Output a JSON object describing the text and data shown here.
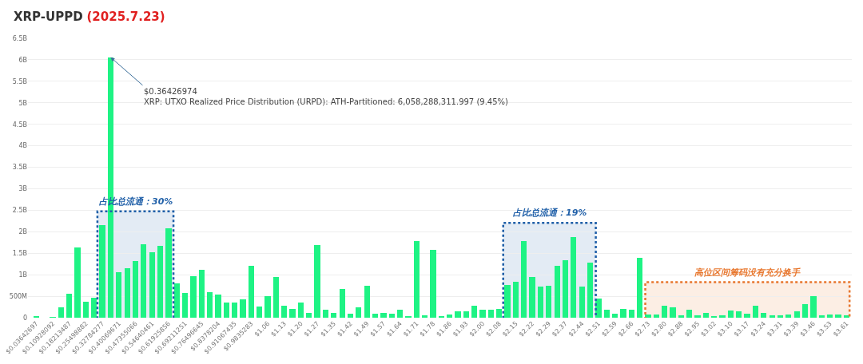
{
  "chart_data": {
    "type": "bar",
    "title": "XRP-UPPD",
    "subtitle": "(2025.7.23)",
    "x": [
      0.03642697,
      0.07285,
      0.10928092,
      0.14571,
      0.18213487,
      0.21856,
      0.25498882,
      0.29142,
      0.32784277,
      0.36426974,
      0.40069671,
      0.43712,
      0.47355066,
      0.50998,
      0.54640461,
      0.58283,
      0.61925856,
      0.65569,
      0.69211251,
      0.72854,
      0.76496645,
      0.80139,
      0.8378204,
      0.87425,
      0.91067435,
      0.9471,
      0.9835283,
      1.01996,
      1.05638,
      1.09281,
      1.12924,
      1.16566,
      1.20209,
      1.23852,
      1.27494,
      1.31137,
      1.3478,
      1.38422,
      1.42065,
      1.45708,
      1.49351,
      1.52993,
      1.56636,
      1.60279,
      1.63921,
      1.67564,
      1.71207,
      1.74849,
      1.78492,
      1.82135,
      1.85778,
      1.8942,
      1.93063,
      1.96706,
      2.00348,
      2.03991,
      2.07634,
      2.11276,
      2.14919,
      2.18562,
      2.22205,
      2.25847,
      2.2949,
      2.33133,
      2.36775,
      2.40418,
      2.44061,
      2.47703,
      2.51346,
      2.54989,
      2.58632,
      2.62274,
      2.65917,
      2.6956,
      2.73202,
      2.76845,
      2.80488,
      2.8413,
      2.87773,
      2.91416,
      2.95059,
      2.98701,
      3.02344,
      3.05987,
      3.09629,
      3.13272,
      3.16915,
      3.20557,
      3.242,
      3.27843,
      3.31486,
      3.35128,
      3.38771,
      3.42414,
      3.46056,
      3.49699,
      3.53342,
      3.56984,
      3.60627
    ],
    "values": [
      30000000,
      0,
      10000000,
      240000000,
      560000000,
      1630000000,
      380000000,
      460000000,
      2150000000,
      6058288312,
      1050000000,
      1160000000,
      1320000000,
      1710000000,
      1530000000,
      1680000000,
      2080000000,
      790000000,
      580000000,
      960000000,
      1110000000,
      590000000,
      540000000,
      350000000,
      350000000,
      430000000,
      1200000000,
      260000000,
      510000000,
      940000000,
      280000000,
      200000000,
      350000000,
      110000000,
      1690000000,
      180000000,
      120000000,
      670000000,
      100000000,
      240000000,
      750000000,
      100000000,
      120000000,
      100000000,
      190000000,
      40000000,
      1780000000,
      50000000,
      1580000000,
      40000000,
      80000000,
      150000000,
      150000000,
      270000000,
      180000000,
      180000000,
      210000000,
      770000000,
      840000000,
      1780000000,
      950000000,
      720000000,
      750000000,
      1210000000,
      1330000000,
      1880000000,
      730000000,
      1280000000,
      450000000,
      190000000,
      100000000,
      200000000,
      180000000,
      1400000000,
      80000000,
      80000000,
      270000000,
      250000000,
      60000000,
      190000000,
      60000000,
      120000000,
      30000000,
      50000000,
      160000000,
      150000000,
      100000000,
      270000000,
      120000000,
      50000000,
      50000000,
      70000000,
      150000000,
      310000000,
      500000000,
      50000000,
      70000000,
      70000000,
      60000000
    ],
    "color": "#1ef384",
    "xlim": [
      0.0,
      3.63
    ],
    "xticks": [
      {
        "value": 0.03642697,
        "label": "$0.03642697"
      },
      {
        "value": 0.10928092,
        "label": "$0.10928092"
      },
      {
        "value": 0.18213487,
        "label": "$0.18213487"
      },
      {
        "value": 0.25498882,
        "label": "$0.25498882"
      },
      {
        "value": 0.32784277,
        "label": "$0.32784277"
      },
      {
        "value": 0.40069671,
        "label": "$0.40069671"
      },
      {
        "value": 0.47355066,
        "label": "$0.47355066"
      },
      {
        "value": 0.54640461,
        "label": "$0.54640461"
      },
      {
        "value": 0.61925856,
        "label": "$0.61925856"
      },
      {
        "value": 0.69211251,
        "label": "$0.69211251"
      },
      {
        "value": 0.76496645,
        "label": "$0.76496645"
      },
      {
        "value": 0.8378204,
        "label": "$0.8378204"
      },
      {
        "value": 0.91067435,
        "label": "$0.91067435"
      },
      {
        "value": 0.9835283,
        "label": "$0.9835283"
      },
      {
        "value": 1.05638,
        "label": "$1.06"
      },
      {
        "value": 1.12924,
        "label": "$1.13"
      },
      {
        "value": 1.20209,
        "label": "$1.20"
      },
      {
        "value": 1.27494,
        "label": "$1.27"
      },
      {
        "value": 1.3478,
        "label": "$1.35"
      },
      {
        "value": 1.42065,
        "label": "$1.42"
      },
      {
        "value": 1.49351,
        "label": "$1.49"
      },
      {
        "value": 1.56636,
        "label": "$1.57"
      },
      {
        "value": 1.63921,
        "label": "$1.64"
      },
      {
        "value": 1.71207,
        "label": "$1.71"
      },
      {
        "value": 1.78492,
        "label": "$1.78"
      },
      {
        "value": 1.85778,
        "label": "$1.86"
      },
      {
        "value": 1.93063,
        "label": "$1.93"
      },
      {
        "value": 2.00348,
        "label": "$2.00"
      },
      {
        "value": 2.07634,
        "label": "$2.08"
      },
      {
        "value": 2.14919,
        "label": "$2.15"
      },
      {
        "value": 2.22205,
        "label": "$2.22"
      },
      {
        "value": 2.2949,
        "label": "$2.29"
      },
      {
        "value": 2.36775,
        "label": "$2.37"
      },
      {
        "value": 2.44061,
        "label": "$2.44"
      },
      {
        "value": 2.51346,
        "label": "$2.51"
      },
      {
        "value": 2.58632,
        "label": "$2.59"
      },
      {
        "value": 2.65917,
        "label": "$2.66"
      },
      {
        "value": 2.73202,
        "label": "$2.73"
      },
      {
        "value": 2.80488,
        "label": "$2.80"
      },
      {
        "value": 2.87773,
        "label": "$2.88"
      },
      {
        "value": 2.95059,
        "label": "$2.95"
      },
      {
        "value": 3.02344,
        "label": "$3.02"
      },
      {
        "value": 3.09629,
        "label": "$3.10"
      },
      {
        "value": 3.16915,
        "label": "$3.17"
      },
      {
        "value": 3.242,
        "label": "$3.24"
      },
      {
        "value": 3.31486,
        "label": "$3.31"
      },
      {
        "value": 3.38771,
        "label": "$3.39"
      },
      {
        "value": 3.46056,
        "label": "$3.46"
      },
      {
        "value": 3.53342,
        "label": "$3.53"
      },
      {
        "value": 3.60627,
        "label": "$3.61"
      }
    ],
    "ylim": [
      0,
      6500000000
    ],
    "yticks": [
      0,
      {
        "value": 500000000,
        "label": "500M"
      },
      {
        "value": 1000000000,
        "label": "1B"
      },
      {
        "value": 1500000000,
        "label": "1.5B"
      },
      {
        "value": 2000000000,
        "label": "2B"
      },
      {
        "value": 2500000000,
        "label": "2.5B"
      },
      {
        "value": 3000000000,
        "label": "3B"
      },
      {
        "value": 3500000000,
        "label": "3.5B"
      },
      {
        "value": 4000000000,
        "label": "4B"
      },
      {
        "value": 4500000000,
        "label": "4.5B"
      },
      {
        "value": 5000000000,
        "label": "5B"
      },
      {
        "value": 5500000000,
        "label": "5.5B"
      },
      {
        "value": 6000000000,
        "label": "6B"
      },
      {
        "value": 6500000000,
        "label": "6.5B"
      }
    ],
    "grid": "y",
    "bands": [
      {
        "axis": "x",
        "from": 0.306,
        "to": 0.641,
        "label": "占比总流通：30%",
        "color": "#1f5fa8"
      },
      {
        "axis": "x",
        "from": 2.094,
        "to": 2.502,
        "label": "占比总流通：19%",
        "color": "#1f5fa8"
      },
      {
        "axis": "x",
        "from": 2.72,
        "to": 3.62,
        "label": "高位区间筹码没有充分换手",
        "color": "#e8772e"
      }
    ],
    "annotations": [
      {
        "text": "$0.36426974\nXRP: UTXO Realized Price Distribution (URPD): ATH-Partitioned: 6,058,288,311.997 (9.45%)",
        "x": 0.36426974,
        "y": 6058288312
      }
    ]
  }
}
